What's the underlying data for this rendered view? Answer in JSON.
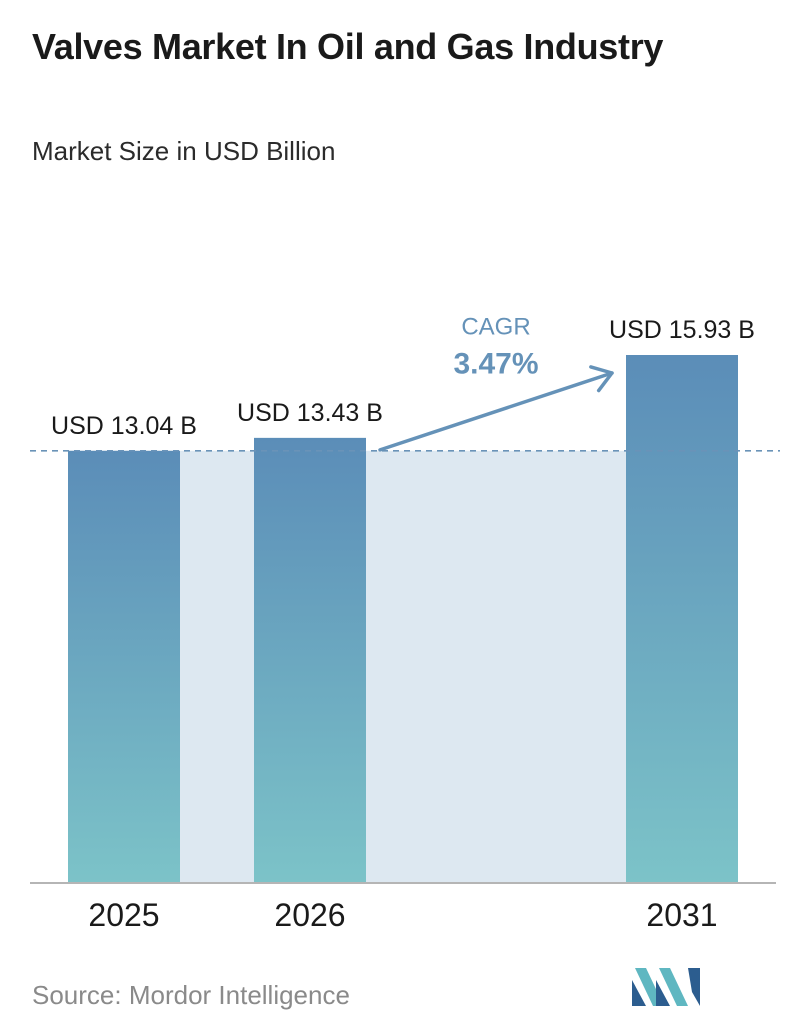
{
  "header": {
    "title": "Valves Market In Oil and Gas Industry",
    "subtitle": "Market Size in USD Billion"
  },
  "chart_data": {
    "type": "bar",
    "categories": [
      "2025",
      "2026",
      "2031"
    ],
    "values": [
      13.04,
      13.43,
      15.93
    ],
    "value_labels": [
      "USD 13.04 B",
      "USD 13.43 B",
      "USD 15.93 B"
    ],
    "title": "Valves Market In Oil and Gas Industry",
    "subtitle": "Market Size in USD Billion",
    "xlabel": "",
    "ylabel": "",
    "ylim": [
      0,
      17.5
    ],
    "grid": false,
    "reference_line_value": 13.04,
    "annotation": {
      "label": "CAGR",
      "value": "3.47%",
      "from": "2026",
      "to": "2031"
    },
    "colors": {
      "bar_top": "#5b8db8",
      "bar_bottom": "#7cc3c8",
      "band": "#dde8f1",
      "annotation": "#6592b8",
      "axis": "#b5b5b5"
    }
  },
  "footer": {
    "source": "Source: Mordor Intelligence",
    "logo_icon": "mordor-intelligence-logo-icon"
  }
}
